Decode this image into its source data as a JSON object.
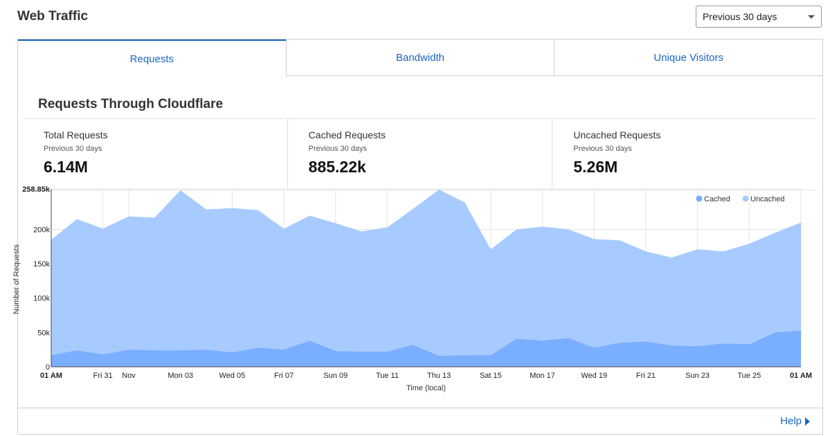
{
  "header": {
    "title": "Web Traffic"
  },
  "range_select": {
    "value": "Previous 30 days"
  },
  "tabs": [
    {
      "label": "Requests",
      "active": true
    },
    {
      "label": "Bandwidth",
      "active": false
    },
    {
      "label": "Unique Visitors",
      "active": false
    }
  ],
  "section_title": "Requests Through Cloudflare",
  "stats": [
    {
      "label": "Total Requests",
      "sub": "Previous 30 days",
      "value": "6.14M"
    },
    {
      "label": "Cached Requests",
      "sub": "Previous 30 days",
      "value": "885.22k"
    },
    {
      "label": "Uncached Requests",
      "sub": "Previous 30 days",
      "value": "5.26M"
    }
  ],
  "footer": {
    "help_label": "Help"
  },
  "colors": {
    "accent": "#1a66c2",
    "cached": "#7aaeff",
    "uncached": "#a8cbff"
  },
  "chart_data": {
    "type": "area",
    "stacked": true,
    "xlabel": "Time (local)",
    "ylabel": "Number of Requests",
    "ylim": [
      0,
      258850
    ],
    "y_ticks": [
      {
        "value": 0,
        "label": "0"
      },
      {
        "value": 50000,
        "label": "50k"
      },
      {
        "value": 100000,
        "label": "100k"
      },
      {
        "value": 150000,
        "label": "150k"
      },
      {
        "value": 200000,
        "label": "200k"
      },
      {
        "value": 258850,
        "label": "258.85k",
        "bold": true
      }
    ],
    "x_ticks": [
      {
        "index": 0,
        "label": "01 AM",
        "bold": true
      },
      {
        "index": 2,
        "label": "Fri 31"
      },
      {
        "index": 3,
        "label": "Nov"
      },
      {
        "index": 5,
        "label": "Mon 03"
      },
      {
        "index": 7,
        "label": "Wed 05"
      },
      {
        "index": 9,
        "label": "Fri 07"
      },
      {
        "index": 11,
        "label": "Sun 09"
      },
      {
        "index": 13,
        "label": "Tue 11"
      },
      {
        "index": 15,
        "label": "Thu 13"
      },
      {
        "index": 17,
        "label": "Sat 15"
      },
      {
        "index": 19,
        "label": "Mon 17"
      },
      {
        "index": 21,
        "label": "Wed 19"
      },
      {
        "index": 23,
        "label": "Fri 21"
      },
      {
        "index": 25,
        "label": "Sun 23"
      },
      {
        "index": 27,
        "label": "Tue 25"
      },
      {
        "index": 29,
        "label": "01 AM",
        "bold": true
      }
    ],
    "legend": {
      "position": "top-right",
      "items": [
        "Cached",
        "Uncached"
      ]
    },
    "series": [
      {
        "name": "Cached",
        "color": "#7aaeff",
        "values": [
          17000,
          24000,
          18000,
          25000,
          24000,
          24000,
          25000,
          21000,
          28000,
          25000,
          38000,
          23000,
          22000,
          22000,
          32000,
          16000,
          17000,
          17000,
          41000,
          38000,
          42000,
          28000,
          35000,
          37000,
          31000,
          30000,
          34000,
          33000,
          50000,
          53000
        ]
      },
      {
        "name": "Uncached",
        "color": "#a8cbff",
        "values": [
          168000,
          191000,
          183000,
          194000,
          193000,
          233000,
          204000,
          210000,
          200000,
          176000,
          182000,
          186000,
          175000,
          181000,
          198000,
          242000,
          222000,
          154000,
          159000,
          166000,
          158000,
          158000,
          149000,
          131000,
          128000,
          141000,
          134000,
          146000,
          145000,
          157000
        ]
      }
    ]
  }
}
